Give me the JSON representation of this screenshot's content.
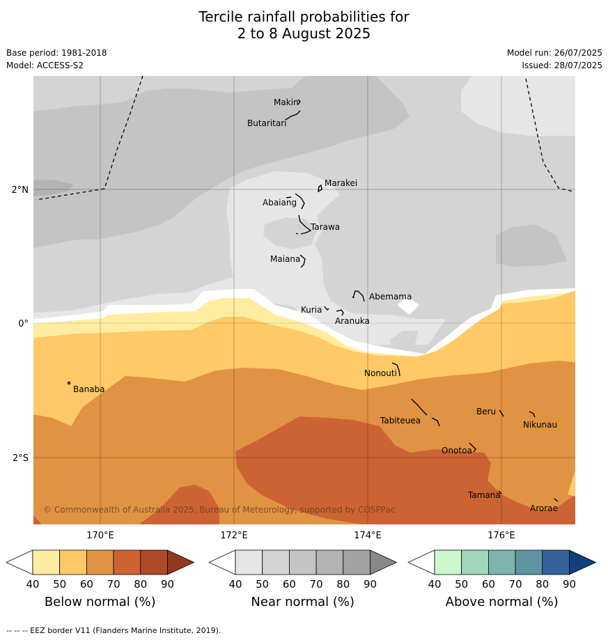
{
  "header": {
    "title_line1": "Tercile rainfall probabilities for",
    "title_line2": "2 to 8 August 2025",
    "base_period": "Base period: 1981-2018",
    "model": "Model: ACCESS-S2",
    "model_run": "Model run: 26/07/2025",
    "issued": "Issued: 28/07/2025"
  },
  "map": {
    "lon_ticks": [
      "170°E",
      "172°E",
      "174°E",
      "176°E"
    ],
    "lat_ticks": [
      "2°N",
      "0°",
      "2°S"
    ],
    "places": [
      {
        "name": "Makin"
      },
      {
        "name": "Butaritari"
      },
      {
        "name": "Marakei"
      },
      {
        "name": "Abaiang"
      },
      {
        "name": "Tarawa"
      },
      {
        "name": "Maiana"
      },
      {
        "name": "Abemama"
      },
      {
        "name": "Kuria"
      },
      {
        "name": "Aranuka"
      },
      {
        "name": "Nonouti"
      },
      {
        "name": "Banaba"
      },
      {
        "name": "Beru"
      },
      {
        "name": "Tabiteuea"
      },
      {
        "name": "Nikunau"
      },
      {
        "name": "Onotoa"
      },
      {
        "name": "Tamana"
      },
      {
        "name": "Arorae"
      }
    ],
    "copyright": "© Commonwealth of Australia 2025, Bureau of Meteorology, supported by COSPPac"
  },
  "colorbars": [
    {
      "title": "Below normal (%)",
      "ticks": [
        "40",
        "50",
        "60",
        "70",
        "80",
        "90"
      ],
      "colors": [
        "#ffffff",
        "#feeda0",
        "#fec966",
        "#e09343",
        "#cd6333",
        "#ae4a27",
        "#93391f"
      ]
    },
    {
      "title": "Near normal (%)",
      "ticks": [
        "40",
        "50",
        "60",
        "70",
        "80",
        "90"
      ],
      "colors": [
        "#ffffff",
        "#e6e6e6",
        "#d4d4d4",
        "#c4c4c4",
        "#b3b3b3",
        "#a2a2a2",
        "#888888"
      ]
    },
    {
      "title": "Above normal (%)",
      "ticks": [
        "40",
        "50",
        "60",
        "70",
        "80",
        "90"
      ],
      "colors": [
        "#ffffff",
        "#caf8ca",
        "#a2d6bc",
        "#7db4ad",
        "#5f94a2",
        "#34649a",
        "#103f7b"
      ]
    }
  ],
  "footer": "--  --  -- EEZ border V11 (Flanders Marine Institute, 2019)."
}
